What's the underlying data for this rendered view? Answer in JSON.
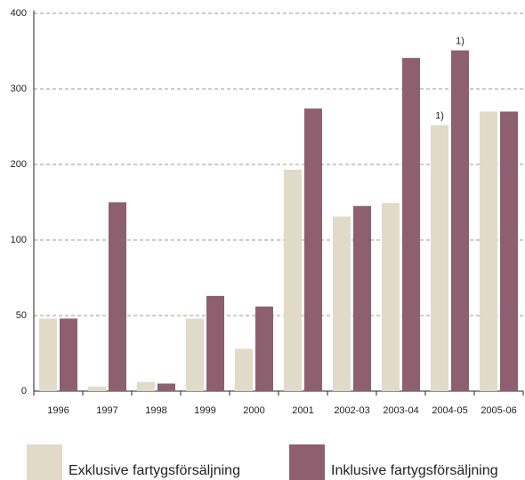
{
  "chart_data": {
    "type": "bar",
    "categories": [
      "1996",
      "1997",
      "1998",
      "1999",
      "2000",
      "2001",
      "2002-03",
      "2003-04",
      "2004-05",
      "2005-06"
    ],
    "series": [
      {
        "name": "Exklusive fartygsförsäljning",
        "color": "#e1dac9",
        "values": [
          48,
          3,
          6,
          48,
          28,
          193,
          131,
          149,
          252,
          270
        ]
      },
      {
        "name": "Inklusive fartygsförsäljning",
        "color": "#8d5f6f",
        "values": [
          48,
          150,
          5,
          63,
          56,
          274,
          145,
          341,
          351,
          270
        ]
      }
    ],
    "ylim": [
      0,
      400
    ],
    "yticks": [
      0,
      50,
      100,
      200,
      300,
      400
    ],
    "grid": true,
    "annotations": [
      {
        "text": "1)",
        "category": "2004-05",
        "series": "Exklusive fartygsförsäljning"
      },
      {
        "text": "1)",
        "category": "2004-05",
        "series": "Inklusive fartygsförsäljning"
      }
    ]
  }
}
